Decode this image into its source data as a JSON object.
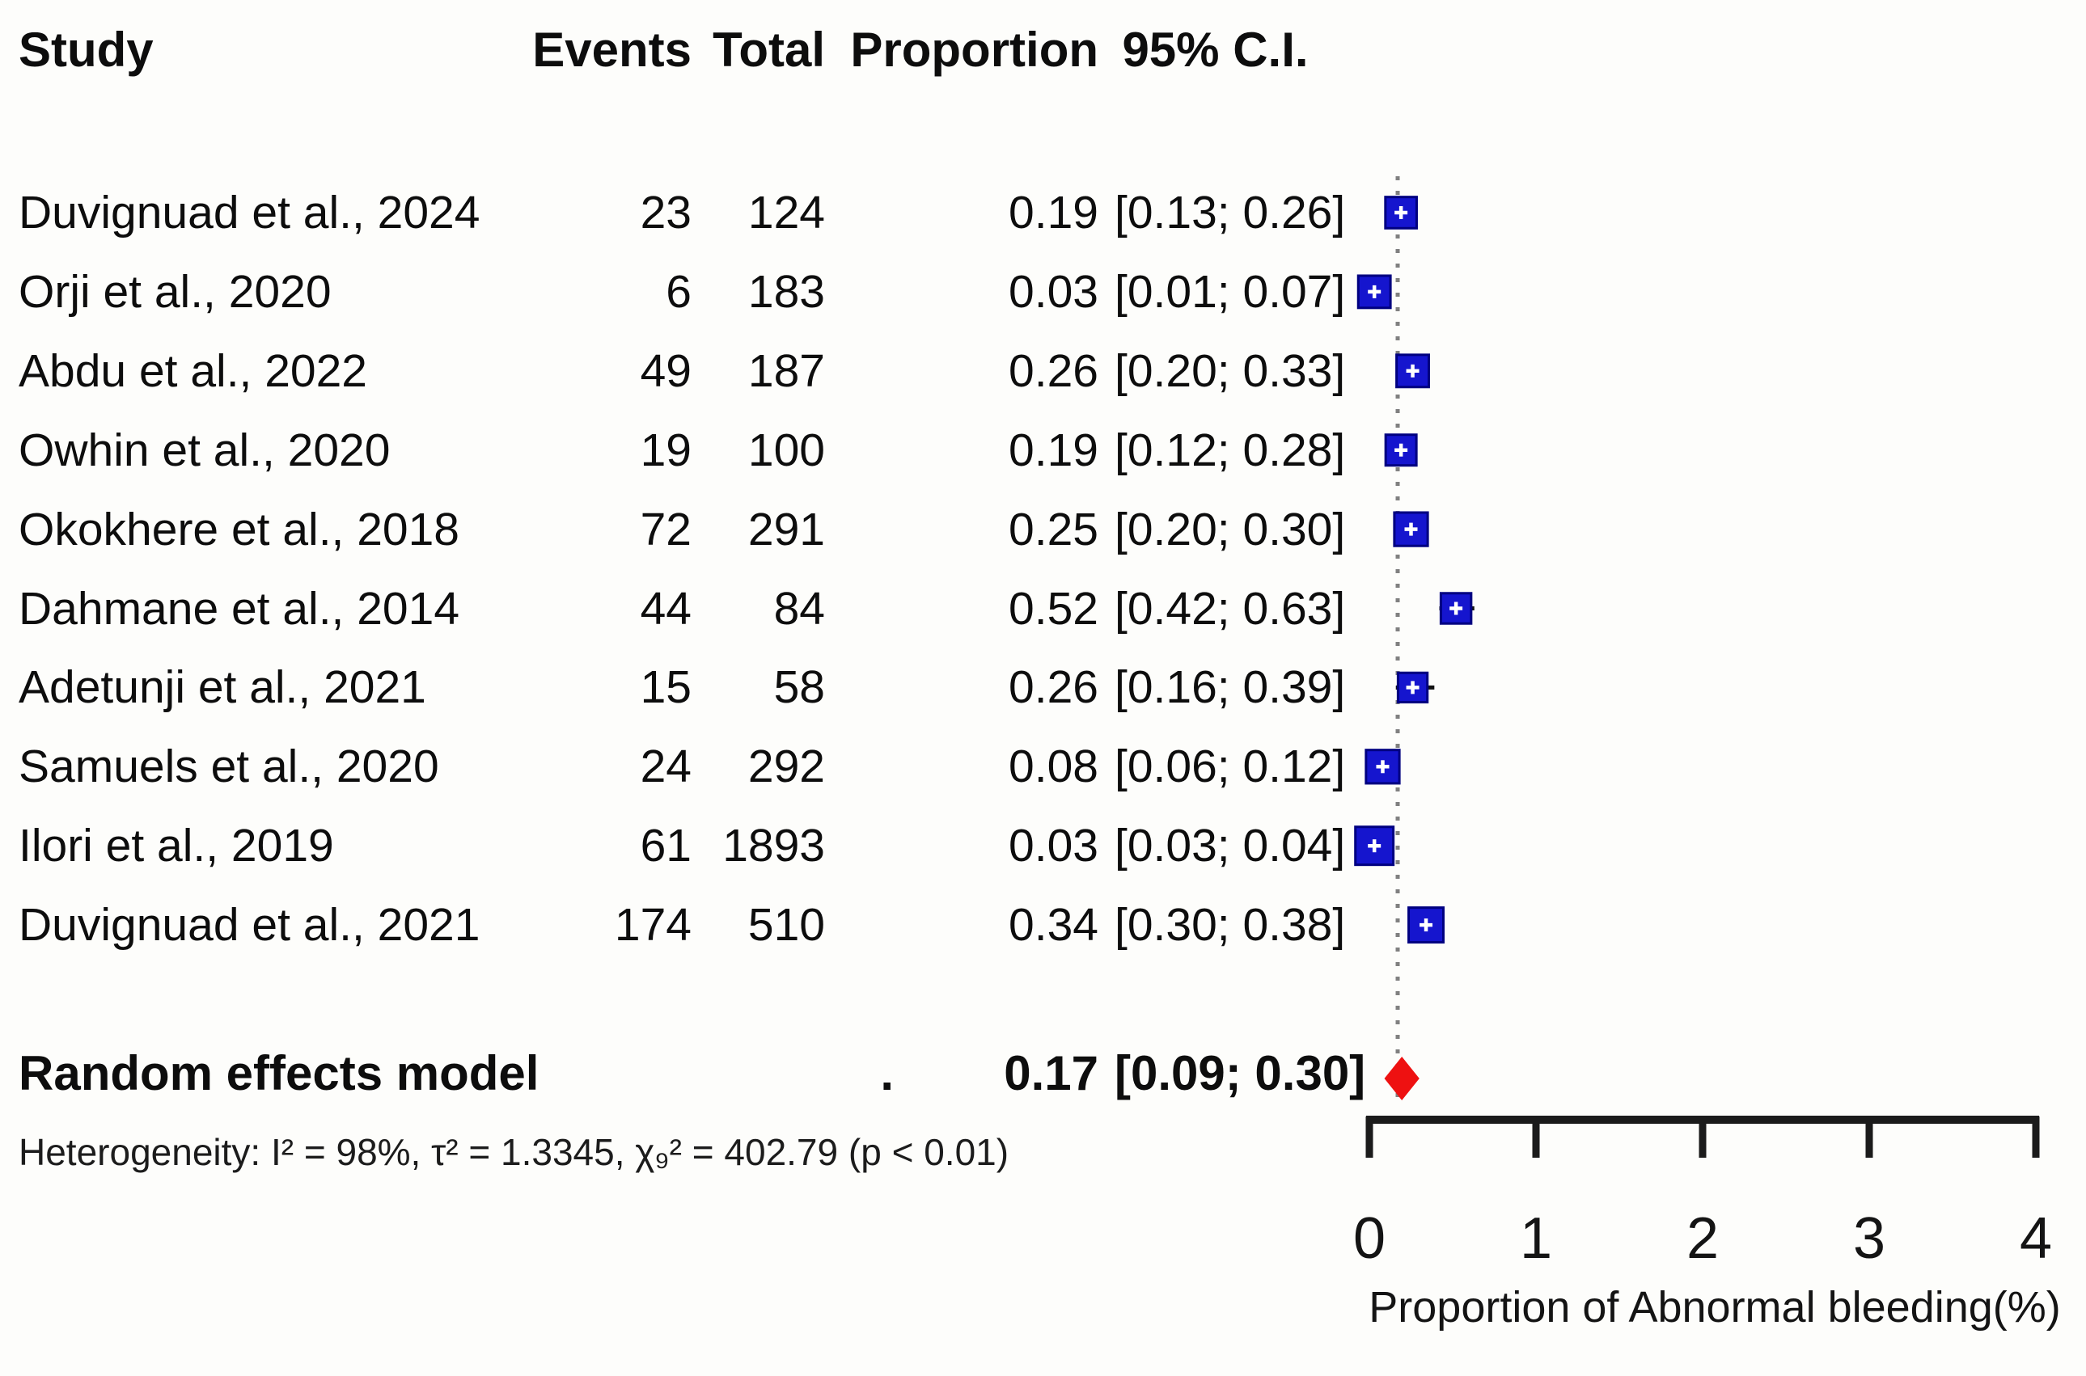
{
  "header": {
    "study": "Study",
    "events": "Events",
    "total": "Total",
    "proportion": "Proportion",
    "ci": "95% C.I."
  },
  "chart_data": {
    "type": "forest",
    "studies": [
      {
        "label": "Duvignuad et al., 2024",
        "events": 23,
        "total": 124,
        "proportion": 0.19,
        "ci_low": 0.13,
        "ci_high": 0.26
      },
      {
        "label": "Orji et al., 2020",
        "events": 6,
        "total": 183,
        "proportion": 0.03,
        "ci_low": 0.01,
        "ci_high": 0.07
      },
      {
        "label": "Abdu et al., 2022",
        "events": 49,
        "total": 187,
        "proportion": 0.26,
        "ci_low": 0.2,
        "ci_high": 0.33
      },
      {
        "label": "Owhin et al., 2020",
        "events": 19,
        "total": 100,
        "proportion": 0.19,
        "ci_low": 0.12,
        "ci_high": 0.28
      },
      {
        "label": "Okokhere et al., 2018",
        "events": 72,
        "total": 291,
        "proportion": 0.25,
        "ci_low": 0.2,
        "ci_high": 0.3
      },
      {
        "label": "Dahmane et al., 2014",
        "events": 44,
        "total": 84,
        "proportion": 0.52,
        "ci_low": 0.42,
        "ci_high": 0.63
      },
      {
        "label": "Adetunji et al., 2021",
        "events": 15,
        "total": 58,
        "proportion": 0.26,
        "ci_low": 0.16,
        "ci_high": 0.39
      },
      {
        "label": "Samuels et al., 2020",
        "events": 24,
        "total": 292,
        "proportion": 0.08,
        "ci_low": 0.06,
        "ci_high": 0.12
      },
      {
        "label": "Ilori et al., 2019",
        "events": 61,
        "total": 1893,
        "proportion": 0.03,
        "ci_low": 0.03,
        "ci_high": 0.04
      },
      {
        "label": "Duvignuad et al., 2021",
        "events": 174,
        "total": 510,
        "proportion": 0.34,
        "ci_low": 0.3,
        "ci_high": 0.38
      }
    ],
    "overall": {
      "label": "Random effects model",
      "events_text": ".",
      "proportion": 0.17,
      "ci_low": 0.09,
      "ci_high": 0.3
    },
    "heterogeneity_text": "Heterogeneity: I² = 98%, τ² = 1.3345, χ₉² = 402.79 (p < 0.01)",
    "xaxis": {
      "ticks": [
        0,
        1,
        2,
        3,
        4
      ],
      "range": [
        0,
        4
      ],
      "label": "Proportion of Abnormal bleeding(%)"
    },
    "colors": {
      "square": "#1515ce",
      "square_border": "#000080",
      "cross": "#ffffff",
      "whisker": "#111111",
      "diamond": "#ee1111",
      "dotted_line": "#808080",
      "axis": "#1b1b1b"
    }
  }
}
